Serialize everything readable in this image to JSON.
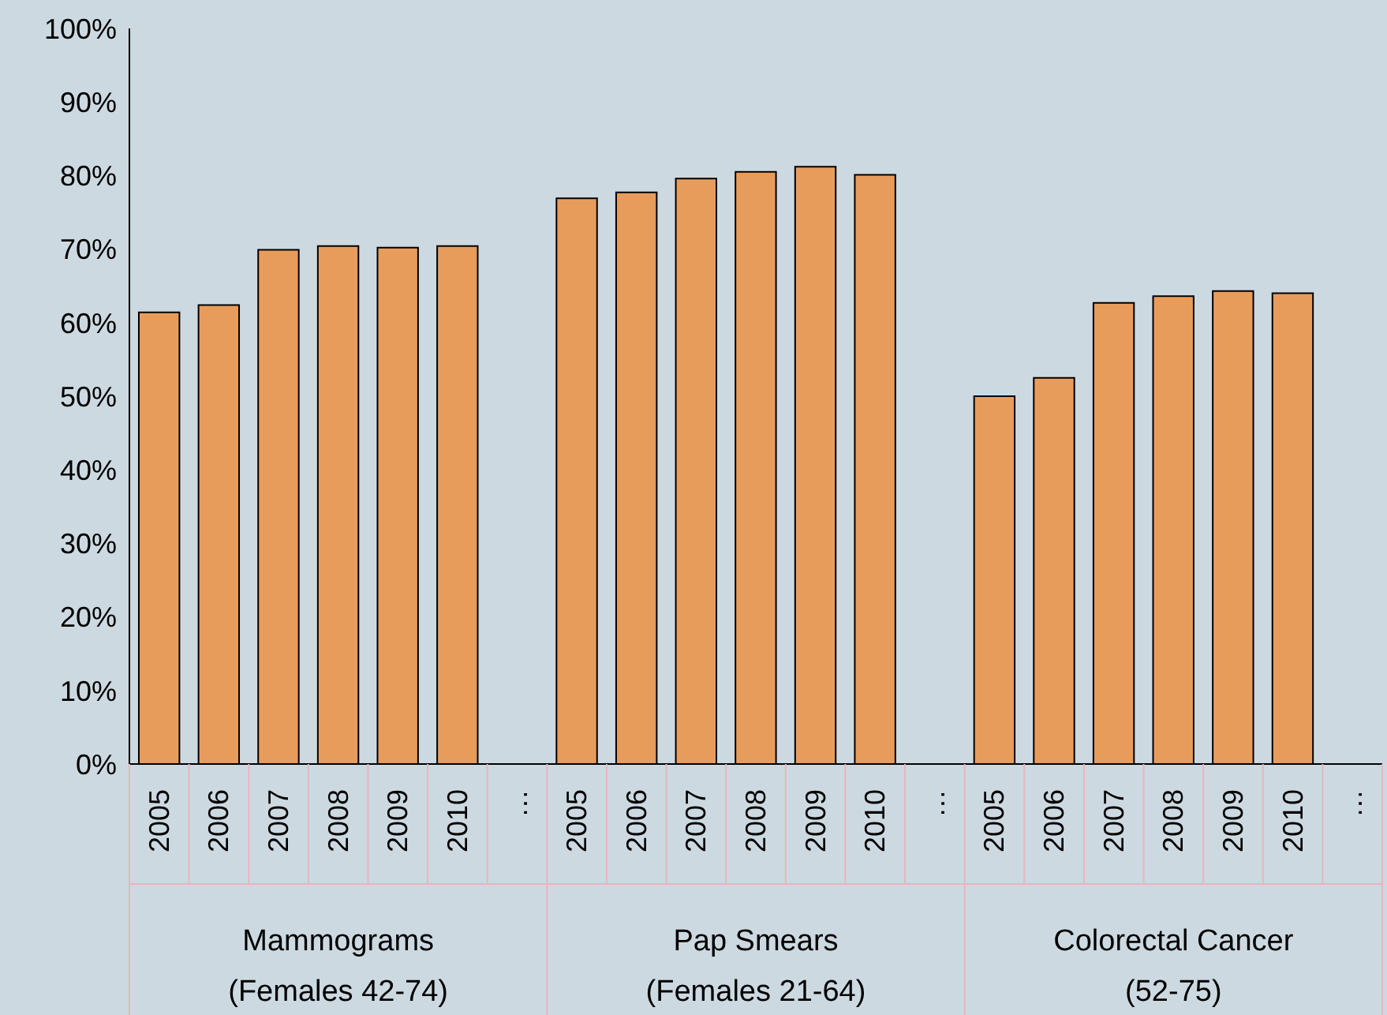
{
  "chart_data": {
    "type": "bar",
    "categories": [
      "2005",
      "2006",
      "2007",
      "2008",
      "2009",
      "2010",
      "…",
      "2005",
      "2006",
      "2007",
      "2008",
      "2009",
      "2010",
      "…",
      "2005",
      "2006",
      "2007",
      "2008",
      "2009",
      "2010",
      "…"
    ],
    "values": [
      61.4,
      62.4,
      69.9,
      70.4,
      70.2,
      70.4,
      null,
      76.9,
      77.7,
      79.6,
      80.5,
      81.2,
      80.1,
      null,
      50.0,
      52.5,
      62.7,
      63.6,
      64.3,
      64.0,
      null
    ],
    "color": "#e89c5c",
    "ylim": [
      0,
      100
    ],
    "yticks": [
      {
        "value": 0,
        "label": "0%"
      },
      {
        "value": 10,
        "label": "10%"
      },
      {
        "value": 20,
        "label": "20%"
      },
      {
        "value": 30,
        "label": "30%"
      },
      {
        "value": 40,
        "label": "40%"
      },
      {
        "value": 50,
        "label": "50%"
      },
      {
        "value": 60,
        "label": "60%"
      },
      {
        "value": 70,
        "label": "70%"
      },
      {
        "value": 80,
        "label": "80%"
      },
      {
        "value": 90,
        "label": "90%"
      },
      {
        "value": 100,
        "label": "100%"
      }
    ],
    "annotations": [
      "Mammograms\n(Females 42-74)",
      "Pap Smears\n(Females 21-64)",
      "Colorectal Cancer\n(52-75)"
    ],
    "grid": false,
    "legend": false
  }
}
